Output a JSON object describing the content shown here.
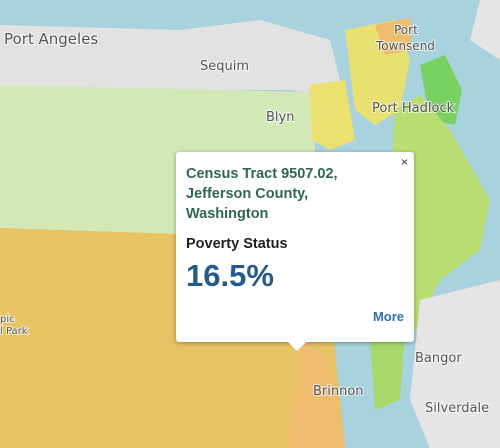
{
  "map": {
    "labels": [
      "Port Angeles",
      "Sequim",
      "Blyn",
      "Port",
      "Townsend",
      "Port Hadlock",
      "Brinnon",
      "Bangor",
      "Silverdale",
      "pic",
      "l Park"
    ]
  },
  "popup": {
    "close": "×",
    "title": "Census Tract 9507.02, Jefferson County, Washington",
    "metric": "Poverty Status",
    "value": "16.5%",
    "link": "More"
  }
}
